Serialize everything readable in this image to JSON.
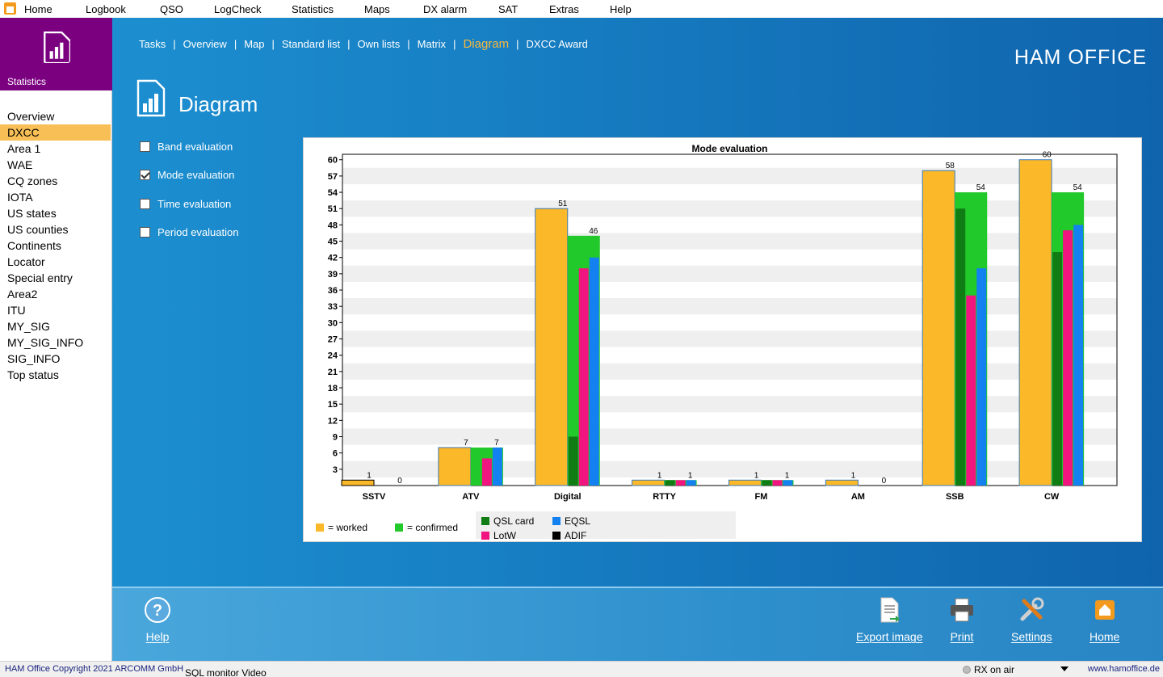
{
  "menubar": {
    "items": [
      "Home",
      "Logbook",
      "QSO",
      "LogCheck",
      "Statistics",
      "Maps",
      "DX alarm",
      "SAT",
      "Extras",
      "Help"
    ]
  },
  "sidebar": {
    "header": "Statistics",
    "active_index": 1,
    "items": [
      "Overview",
      "DXCC",
      "Area 1",
      "WAE",
      "CQ zones",
      "IOTA",
      "US states",
      "US counties",
      "Continents",
      "Locator",
      "Special entry",
      "Area2",
      "ITU",
      "MY_SIG",
      "MY_SIG_INFO",
      "SIG_INFO",
      "Top status"
    ]
  },
  "tabs": {
    "items": [
      "Tasks",
      "Overview",
      "Map",
      "Standard list",
      "Own lists",
      "Matrix",
      "Diagram",
      "DXCC Award"
    ],
    "active_index": 6,
    "separator": "|"
  },
  "brand": "HAM OFFICE",
  "page_title": "Diagram",
  "options": [
    {
      "label": "Band evaluation",
      "checked": false
    },
    {
      "label": "Mode evaluation",
      "checked": true
    },
    {
      "label": "Time evaluation",
      "checked": false
    },
    {
      "label": "Period evaluation",
      "checked": false
    }
  ],
  "colors": {
    "worked": "#fbb829",
    "confirmed": "#22c92a",
    "qsl_card": "#0f7d14",
    "lotw": "#f0157f",
    "eqsl": "#1382f0",
    "adif": "#000000"
  },
  "chart_data": {
    "type": "bar",
    "title": "Mode evaluation",
    "categories": [
      "SSTV",
      "ATV",
      "Digital",
      "RTTY",
      "FM",
      "AM",
      "SSB",
      "CW"
    ],
    "ylim": [
      0,
      61
    ],
    "yticks": [
      3,
      6,
      9,
      12,
      15,
      18,
      21,
      24,
      27,
      30,
      33,
      36,
      39,
      42,
      45,
      48,
      51,
      54,
      57,
      60
    ],
    "grid": "horizontal bands",
    "series": [
      {
        "name": "worked",
        "values": [
          1,
          7,
          51,
          1,
          1,
          1,
          58,
          60
        ]
      },
      {
        "name": "confirmed",
        "values": [
          0,
          7,
          46,
          1,
          1,
          0,
          54,
          54
        ]
      },
      {
        "name": "QSL card",
        "values": [
          0,
          0,
          9,
          1,
          1,
          0,
          51,
          43
        ]
      },
      {
        "name": "LotW",
        "values": [
          0,
          5,
          40,
          1,
          1,
          0,
          35,
          47
        ]
      },
      {
        "name": "EQSL",
        "values": [
          0,
          7,
          42,
          1,
          1,
          0,
          40,
          48
        ]
      }
    ],
    "legend": {
      "worked": "= worked",
      "confirmed": "= confirmed",
      "qsl_card": "QSL card",
      "eqsl": "EQSL",
      "lotw": "LotW",
      "adif": "ADIF"
    }
  },
  "toolbar": {
    "help": "Help",
    "export": "Export image",
    "print": "Print",
    "settings": "Settings",
    "home": "Home"
  },
  "status": {
    "copyright": "HAM Office Copyright 2021 ARCOMM GmbH",
    "links": "SQL monitor  Video",
    "rx": "RX on air",
    "url": "www.hamoffice.de"
  }
}
